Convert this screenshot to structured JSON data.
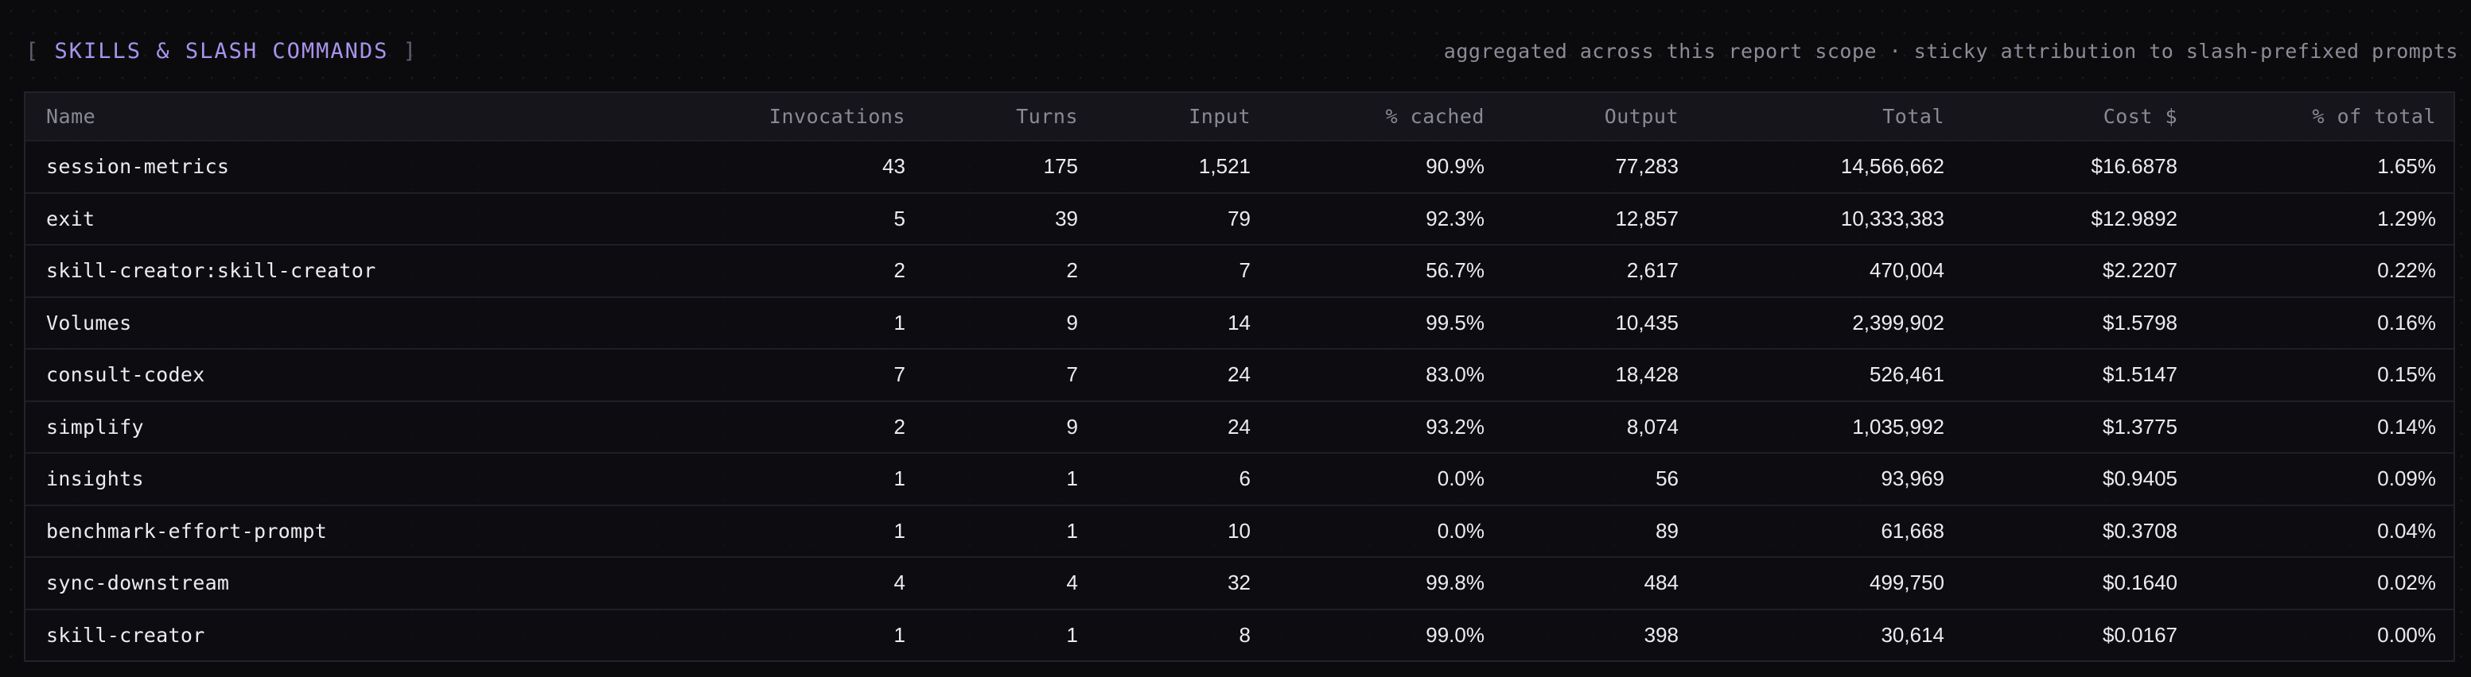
{
  "section": {
    "bracket_open": "[",
    "title": "SKILLS & SLASH COMMANDS",
    "bracket_close": "]",
    "subtitle": "aggregated across this report scope · sticky attribution to slash-prefixed prompts"
  },
  "table": {
    "headers": {
      "name": "Name",
      "invocations": "Invocations",
      "turns": "Turns",
      "input": "Input",
      "cached": "% cached",
      "output": "Output",
      "total": "Total",
      "cost": "Cost $",
      "pct_total": "% of total"
    },
    "rows": [
      {
        "name": "session-metrics",
        "invocations": "43",
        "turns": "175",
        "input": "1,521",
        "cached": "90.9%",
        "output": "77,283",
        "total": "14,566,662",
        "cost": "$16.6878",
        "pct_total": "1.65%"
      },
      {
        "name": "exit",
        "invocations": "5",
        "turns": "39",
        "input": "79",
        "cached": "92.3%",
        "output": "12,857",
        "total": "10,333,383",
        "cost": "$12.9892",
        "pct_total": "1.29%"
      },
      {
        "name": "skill-creator:skill-creator",
        "invocations": "2",
        "turns": "2",
        "input": "7",
        "cached": "56.7%",
        "output": "2,617",
        "total": "470,004",
        "cost": "$2.2207",
        "pct_total": "0.22%"
      },
      {
        "name": "Volumes",
        "invocations": "1",
        "turns": "9",
        "input": "14",
        "cached": "99.5%",
        "output": "10,435",
        "total": "2,399,902",
        "cost": "$1.5798",
        "pct_total": "0.16%"
      },
      {
        "name": "consult-codex",
        "invocations": "7",
        "turns": "7",
        "input": "24",
        "cached": "83.0%",
        "output": "18,428",
        "total": "526,461",
        "cost": "$1.5147",
        "pct_total": "0.15%"
      },
      {
        "name": "simplify",
        "invocations": "2",
        "turns": "9",
        "input": "24",
        "cached": "93.2%",
        "output": "8,074",
        "total": "1,035,992",
        "cost": "$1.3775",
        "pct_total": "0.14%"
      },
      {
        "name": "insights",
        "invocations": "1",
        "turns": "1",
        "input": "6",
        "cached": "0.0%",
        "output": "56",
        "total": "93,969",
        "cost": "$0.9405",
        "pct_total": "0.09%"
      },
      {
        "name": "benchmark-effort-prompt",
        "invocations": "1",
        "turns": "1",
        "input": "10",
        "cached": "0.0%",
        "output": "89",
        "total": "61,668",
        "cost": "$0.3708",
        "pct_total": "0.04%"
      },
      {
        "name": "sync-downstream",
        "invocations": "4",
        "turns": "4",
        "input": "32",
        "cached": "99.8%",
        "output": "484",
        "total": "499,750",
        "cost": "$0.1640",
        "pct_total": "0.02%"
      },
      {
        "name": "skill-creator",
        "invocations": "1",
        "turns": "1",
        "input": "8",
        "cached": "99.0%",
        "output": "398",
        "total": "30,614",
        "cost": "$0.0167",
        "pct_total": "0.00%"
      }
    ]
  },
  "colors": {
    "background": "#0b0b0d",
    "accent": "#a894ee",
    "header_text": "#8a8a96",
    "cell_text": "#ececf0",
    "border": "#23232c"
  }
}
